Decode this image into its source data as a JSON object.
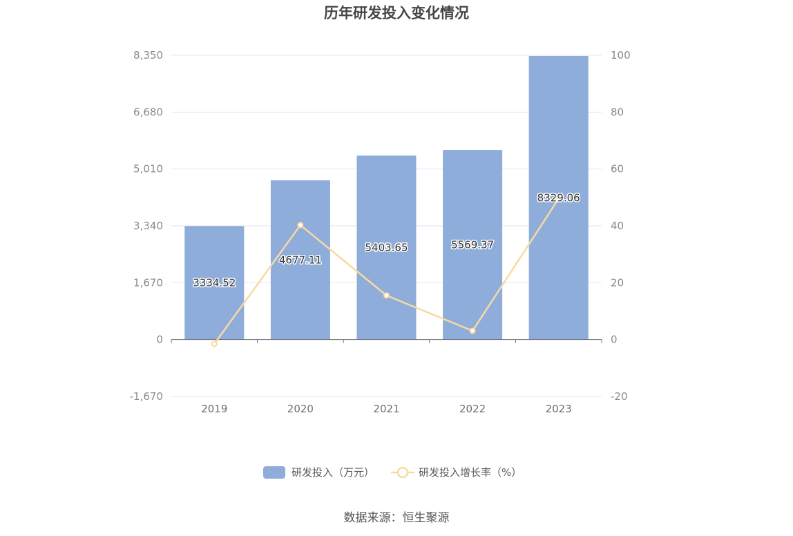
{
  "chart_data": {
    "type": "bar",
    "title": "历年研发投入变化情况",
    "categories": [
      "2019",
      "2020",
      "2021",
      "2022",
      "2023"
    ],
    "series": [
      {
        "name": "研发投入（万元）",
        "type": "bar",
        "axis": "left",
        "values": [
          3334.52,
          4677.11,
          5403.65,
          5569.37,
          8329.06
        ],
        "labels": [
          "3334.52",
          "4677.11",
          "5403.65",
          "5569.37",
          "8329.06"
        ],
        "color": "#8eaddb"
      },
      {
        "name": "研发投入增长率（%）",
        "type": "line",
        "axis": "right",
        "values": [
          -1.5,
          40.26,
          15.53,
          3.07,
          49.55
        ],
        "color": "#f9d9a0"
      }
    ],
    "y_left": {
      "min": -1670,
      "max": 8350,
      "ticks": [
        -1670,
        0,
        1670,
        3340,
        5010,
        6680,
        8350
      ],
      "tick_labels": [
        "-1,670",
        "0",
        "1,670",
        "3,340",
        "5,010",
        "6,680",
        "8,350"
      ]
    },
    "y_right": {
      "min": -20,
      "max": 100,
      "ticks": [
        -20,
        0,
        20,
        40,
        60,
        80,
        100
      ],
      "tick_labels": [
        "-20",
        "0",
        "20",
        "40",
        "60",
        "80",
        "100"
      ]
    },
    "grid": true,
    "legend": "bottom-center",
    "source": "数据来源：恒生聚源"
  }
}
